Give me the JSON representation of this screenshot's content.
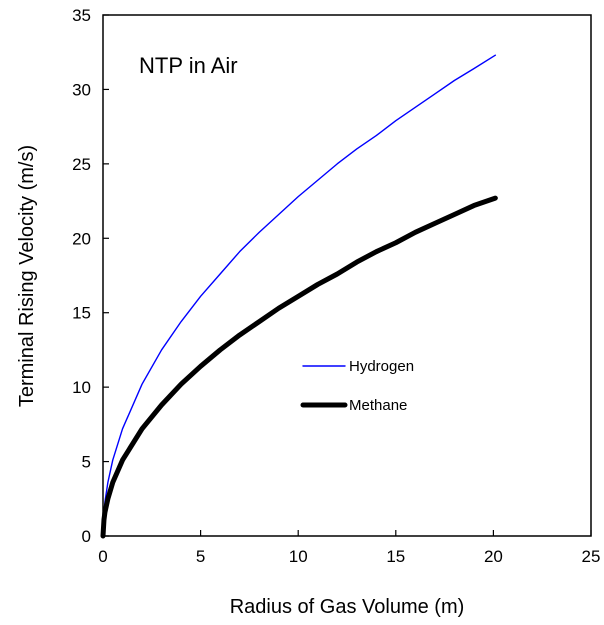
{
  "chart_data": {
    "type": "line",
    "title": "",
    "annotation": "NTP in Air",
    "xlabel": "Radius of Gas Volume (m)",
    "ylabel": "Terminal Rising Velocity (m/s)",
    "xlim": [
      0,
      25
    ],
    "ylim": [
      0,
      35
    ],
    "xticks": [
      0,
      5,
      10,
      15,
      20,
      25
    ],
    "yticks": [
      0,
      5,
      10,
      15,
      20,
      25,
      30,
      35
    ],
    "grid": false,
    "legend_position": "center-right",
    "series": [
      {
        "name": "Hydrogen",
        "color": "#0000ff",
        "line_style": "thin",
        "x": [
          0,
          0.05,
          0.1,
          0.25,
          0.5,
          1,
          2,
          3,
          4,
          5,
          6,
          7,
          8,
          9,
          10,
          11,
          12,
          13,
          14,
          15,
          16,
          17,
          18,
          19,
          20.1
        ],
        "y": [
          0,
          1.6,
          2.3,
          3.6,
          5.1,
          7.2,
          10.2,
          12.5,
          14.4,
          16.1,
          17.6,
          19.1,
          20.4,
          21.6,
          22.8,
          23.9,
          25.0,
          26.0,
          26.9,
          27.9,
          28.8,
          29.7,
          30.6,
          31.4,
          32.3
        ]
      },
      {
        "name": "Methane",
        "color": "#000000",
        "line_style": "thick",
        "x": [
          0,
          0.05,
          0.1,
          0.25,
          0.5,
          1,
          2,
          3,
          4,
          5,
          6,
          7,
          8,
          9,
          10,
          11,
          12,
          13,
          14,
          15,
          16,
          17,
          18,
          19,
          20.1
        ],
        "y": [
          0,
          1.1,
          1.6,
          2.5,
          3.6,
          5.1,
          7.2,
          8.8,
          10.2,
          11.4,
          12.5,
          13.5,
          14.4,
          15.3,
          16.1,
          16.9,
          17.6,
          18.4,
          19.1,
          19.7,
          20.4,
          21.0,
          21.6,
          22.2,
          22.7
        ]
      }
    ]
  }
}
